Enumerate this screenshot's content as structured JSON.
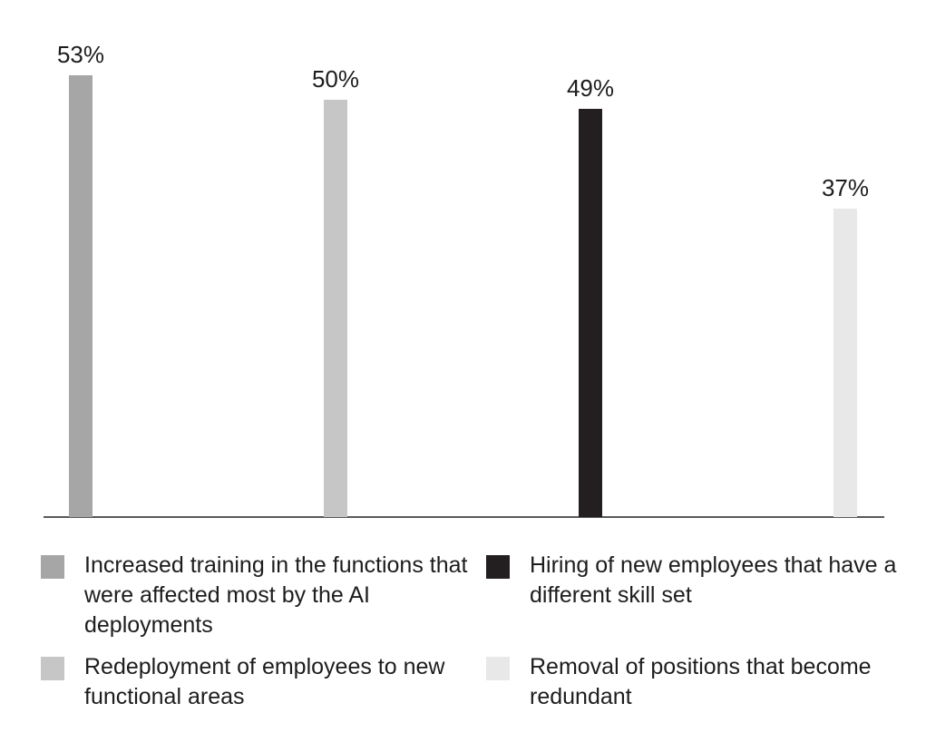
{
  "chart_data": {
    "type": "bar",
    "unit": "%",
    "background": "#ffffff",
    "text_color": "#1d1d1d",
    "baseline_color": "#595959",
    "value_axis": {
      "min": 0,
      "labels_visible": false,
      "gridlines": false
    },
    "legend_position": "bottom-two-columns",
    "legend_order": [
      0,
      2,
      1,
      3
    ],
    "series": [
      {
        "id": "increased-training",
        "name": "Increased training in the functions that were affected most by the AI deployments",
        "value": 53,
        "label": "53%",
        "color": "#a6a6a6"
      },
      {
        "id": "redeployment",
        "name": "Redeployment of employees to new functional areas",
        "value": 50,
        "label": "50%",
        "color": "#c6c6c6"
      },
      {
        "id": "hiring",
        "name": "Hiring of new employees that have a different skill set",
        "value": 49,
        "label": "49%",
        "color": "#231f20"
      },
      {
        "id": "removal",
        "name": "Removal of positions that become redundant",
        "value": 37,
        "label": "37%",
        "color": "#e9e8e8"
      }
    ]
  }
}
